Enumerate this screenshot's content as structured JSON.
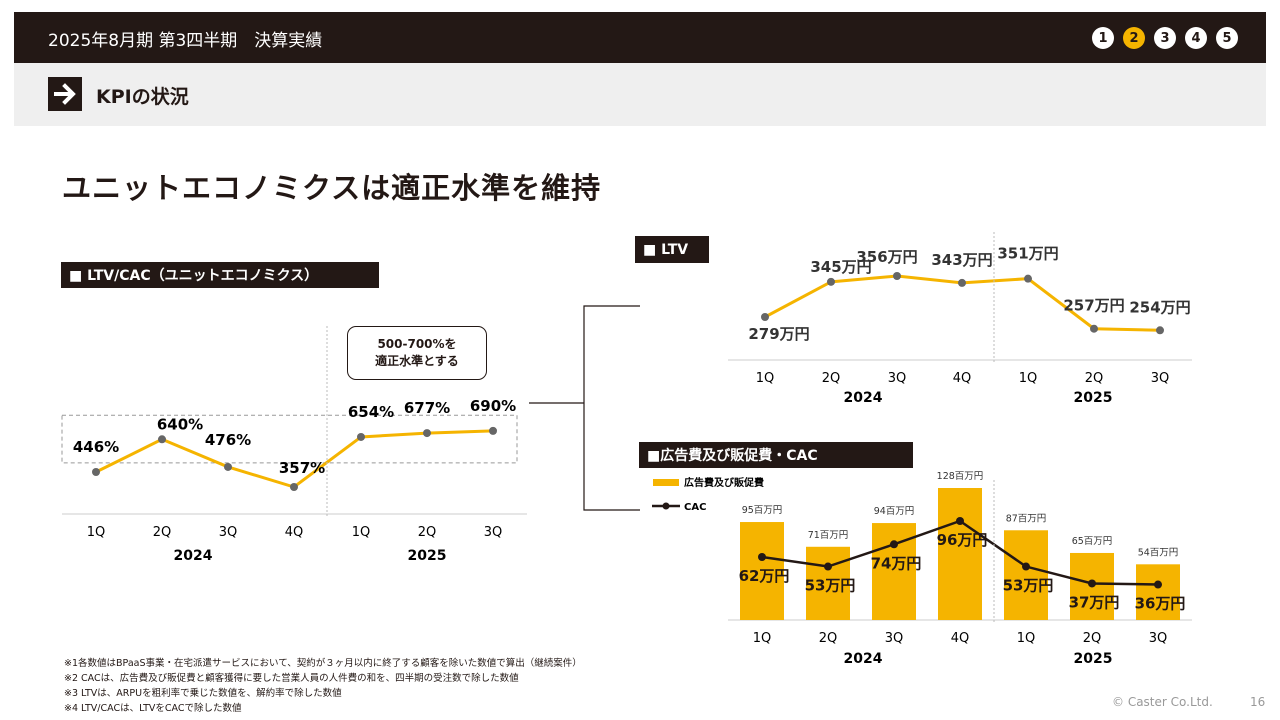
{
  "header": {
    "title": "2025年8月期 第3四半期　決算実績",
    "steps": [
      "1",
      "2",
      "3",
      "4",
      "5"
    ],
    "active_step": 1
  },
  "section": {
    "title": "KPIの状況"
  },
  "headline": "ユニットエコノミクスは適正水準を維持",
  "panels": {
    "ltvcac": "■ LTV/CAC（ユニットエコノミクス）",
    "ltv": "■ LTV",
    "ad": "■広告費及び販促費・CAC"
  },
  "callout": {
    "line1": "500-700%を",
    "line2": "適正水準とする"
  },
  "notes": [
    "※1各数値はBPaaS事業・在宅派遣サービスにおいて、契約が３ヶ月以内に終了する顧客を除いた数値で算出（継続案件）",
    "※2 CACは、広告費及び販促費と顧客獲得に要した営業人員の人件費の和を、四半期の受注数で除した数値",
    "※3 LTVは、ARPUを粗利率で乗じた数値を、解約率で除した数値",
    "※4 LTV/CACは、LTVをCACで除した数値"
  ],
  "footer": {
    "copyright": "© Caster Co.Ltd.",
    "page": "16"
  },
  "colors": {
    "accent": "#f5b400",
    "dark": "#231815",
    "point": "#666666"
  },
  "chart_data": [
    {
      "type": "line",
      "title": "LTV/CAC（ユニットエコノミクス）",
      "categories": [
        "1Q",
        "2Q",
        "3Q",
        "4Q",
        "1Q",
        "2Q",
        "3Q"
      ],
      "groups": [
        "2024",
        "2025"
      ],
      "values": [
        446,
        640,
        476,
        357,
        654,
        677,
        690
      ],
      "labels": [
        "446%",
        "640%",
        "476%",
        "357%",
        "654%",
        "677%",
        "690%"
      ],
      "target_band": [
        500,
        700
      ]
    },
    {
      "type": "line",
      "title": "LTV",
      "categories": [
        "1Q",
        "2Q",
        "3Q",
        "4Q",
        "1Q",
        "2Q",
        "3Q"
      ],
      "groups": [
        "2024",
        "2025"
      ],
      "values": [
        279,
        345,
        356,
        343,
        351,
        257,
        254
      ],
      "labels": [
        "279万円",
        "345万円",
        "356万円",
        "343万円",
        "351万円",
        "257万円",
        "254万円"
      ]
    },
    {
      "type": "bar",
      "title": "広告費及び販促費・CAC",
      "categories": [
        "1Q",
        "2Q",
        "3Q",
        "4Q",
        "1Q",
        "2Q",
        "3Q"
      ],
      "groups": [
        "2024",
        "2025"
      ],
      "series": [
        {
          "name": "広告費及び販促費",
          "values": [
            95,
            71,
            94,
            128,
            87,
            65,
            54
          ],
          "labels": [
            "95百万円",
            "71百万円",
            "94百万円",
            "128百万円",
            "87百万円",
            "65百万円",
            "54百万円"
          ]
        },
        {
          "name": "CAC",
          "values": [
            62,
            53,
            74,
            96,
            53,
            37,
            36
          ],
          "labels": [
            "62万円",
            "53万円",
            "74万円",
            "96万円",
            "53万円",
            "37万円",
            "36万円"
          ]
        }
      ]
    }
  ]
}
